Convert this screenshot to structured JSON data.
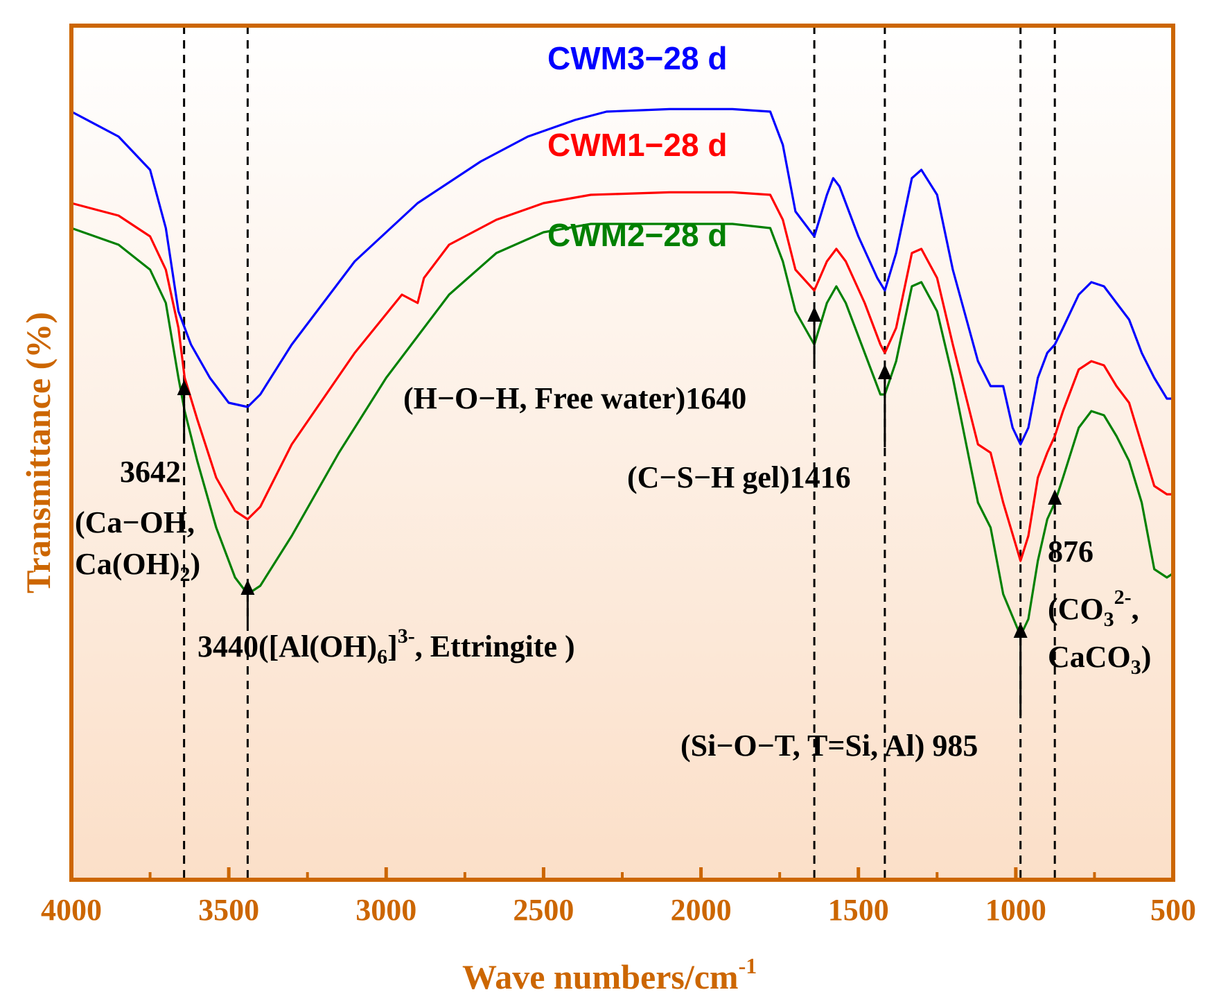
{
  "chart_data": {
    "type": "line",
    "xlabel": "Wave numbers/cm",
    "xlabel_superscript": "-1",
    "ylabel": "Transmittance (%)",
    "xlim": [
      4000,
      500
    ],
    "ylim": [
      0,
      100
    ],
    "x_ticks": [
      4000,
      3500,
      3000,
      2500,
      2000,
      1500,
      1000,
      500
    ],
    "grid": false,
    "axis_color": "#CC6600",
    "series": [
      {
        "name": "CWM3−28 d",
        "color": "#0000FF",
        "points": [
          [
            4000,
            92
          ],
          [
            3850,
            89
          ],
          [
            3750,
            85
          ],
          [
            3700,
            78
          ],
          [
            3660,
            68
          ],
          [
            3620,
            64
          ],
          [
            3560,
            60
          ],
          [
            3500,
            57
          ],
          [
            3440,
            56.5
          ],
          [
            3400,
            58
          ],
          [
            3300,
            64
          ],
          [
            3100,
            74
          ],
          [
            2900,
            81
          ],
          [
            2700,
            86
          ],
          [
            2550,
            89
          ],
          [
            2400,
            91
          ],
          [
            2300,
            92
          ],
          [
            2100,
            92.3
          ],
          [
            1900,
            92.3
          ],
          [
            1780,
            92
          ],
          [
            1740,
            88
          ],
          [
            1700,
            80
          ],
          [
            1640,
            77
          ],
          [
            1600,
            82
          ],
          [
            1580,
            84
          ],
          [
            1560,
            83
          ],
          [
            1500,
            77
          ],
          [
            1440,
            72
          ],
          [
            1416,
            70.5
          ],
          [
            1380,
            75
          ],
          [
            1330,
            84
          ],
          [
            1300,
            85
          ],
          [
            1250,
            82
          ],
          [
            1200,
            73
          ],
          [
            1120,
            62
          ],
          [
            1080,
            59
          ],
          [
            1040,
            59
          ],
          [
            1010,
            54
          ],
          [
            985,
            52
          ],
          [
            960,
            54
          ],
          [
            930,
            60
          ],
          [
            900,
            63
          ],
          [
            876,
            64
          ],
          [
            850,
            66
          ],
          [
            800,
            70
          ],
          [
            760,
            71.5
          ],
          [
            720,
            71
          ],
          [
            680,
            69
          ],
          [
            640,
            67
          ],
          [
            600,
            63
          ],
          [
            560,
            60
          ],
          [
            520,
            57.5
          ],
          [
            500,
            57.5
          ]
        ]
      },
      {
        "name": "CWM1−28 d",
        "color": "#FF0000",
        "points": [
          [
            4000,
            81
          ],
          [
            3850,
            79.5
          ],
          [
            3750,
            77
          ],
          [
            3700,
            73
          ],
          [
            3660,
            66
          ],
          [
            3640,
            60
          ],
          [
            3600,
            55
          ],
          [
            3540,
            48
          ],
          [
            3480,
            44
          ],
          [
            3440,
            43
          ],
          [
            3400,
            44.5
          ],
          [
            3300,
            52
          ],
          [
            3100,
            63
          ],
          [
            2950,
            70
          ],
          [
            2900,
            69
          ],
          [
            2880,
            72
          ],
          [
            2800,
            76
          ],
          [
            2650,
            79
          ],
          [
            2500,
            81
          ],
          [
            2350,
            82
          ],
          [
            2100,
            82.3
          ],
          [
            1900,
            82.3
          ],
          [
            1780,
            82
          ],
          [
            1740,
            79
          ],
          [
            1700,
            73
          ],
          [
            1640,
            70.5
          ],
          [
            1600,
            74
          ],
          [
            1570,
            75.5
          ],
          [
            1540,
            74
          ],
          [
            1480,
            69
          ],
          [
            1430,
            64
          ],
          [
            1416,
            63
          ],
          [
            1380,
            66
          ],
          [
            1330,
            75
          ],
          [
            1300,
            75.5
          ],
          [
            1250,
            72
          ],
          [
            1200,
            64
          ],
          [
            1120,
            52
          ],
          [
            1080,
            51
          ],
          [
            1040,
            45
          ],
          [
            985,
            38
          ],
          [
            960,
            41
          ],
          [
            930,
            48
          ],
          [
            900,
            51
          ],
          [
            876,
            53
          ],
          [
            850,
            56
          ],
          [
            800,
            61
          ],
          [
            760,
            62
          ],
          [
            720,
            61.5
          ],
          [
            680,
            59
          ],
          [
            640,
            57
          ],
          [
            600,
            52
          ],
          [
            560,
            47
          ],
          [
            520,
            46
          ],
          [
            500,
            46
          ]
        ]
      },
      {
        "name": "CWM2−28 d",
        "color": "#008000",
        "points": [
          [
            4000,
            78
          ],
          [
            3850,
            76
          ],
          [
            3750,
            73
          ],
          [
            3700,
            69
          ],
          [
            3660,
            60
          ],
          [
            3640,
            56
          ],
          [
            3600,
            50
          ],
          [
            3540,
            42
          ],
          [
            3480,
            36
          ],
          [
            3440,
            34
          ],
          [
            3400,
            35
          ],
          [
            3300,
            41
          ],
          [
            3150,
            51
          ],
          [
            3000,
            60
          ],
          [
            2900,
            65
          ],
          [
            2800,
            70
          ],
          [
            2650,
            75
          ],
          [
            2500,
            77.5
          ],
          [
            2350,
            78.5
          ],
          [
            2100,
            78.5
          ],
          [
            1900,
            78.5
          ],
          [
            1780,
            78
          ],
          [
            1740,
            74
          ],
          [
            1700,
            68
          ],
          [
            1640,
            64
          ],
          [
            1600,
            69
          ],
          [
            1570,
            71
          ],
          [
            1540,
            69
          ],
          [
            1480,
            63
          ],
          [
            1430,
            58
          ],
          [
            1416,
            58
          ],
          [
            1380,
            62
          ],
          [
            1330,
            71
          ],
          [
            1300,
            71.5
          ],
          [
            1250,
            68
          ],
          [
            1200,
            60
          ],
          [
            1120,
            45
          ],
          [
            1080,
            42
          ],
          [
            1040,
            34
          ],
          [
            985,
            29
          ],
          [
            960,
            31
          ],
          [
            930,
            38
          ],
          [
            900,
            43
          ],
          [
            876,
            45
          ],
          [
            850,
            48
          ],
          [
            800,
            54
          ],
          [
            760,
            56
          ],
          [
            720,
            55.5
          ],
          [
            680,
            53
          ],
          [
            640,
            50
          ],
          [
            600,
            45
          ],
          [
            560,
            37
          ],
          [
            520,
            36
          ],
          [
            500,
            36.5
          ]
        ]
      }
    ],
    "marker_lines": [
      3642,
      3440,
      1640,
      1416,
      985,
      876
    ],
    "annotations": [
      {
        "wavenumber": 3642,
        "lines": [
          "3642",
          "(Ca−OH,",
          "Ca(OH)"
        ],
        "sub": "2",
        "close": ")"
      },
      {
        "wavenumber": 3440,
        "text_before": "3440([Al(OH)",
        "sub": "6",
        "mid": "]",
        "sup": "3-",
        "text_after": ", Ettringite )"
      },
      {
        "wavenumber": 1640,
        "text": "(H−O−H, Free water)1640"
      },
      {
        "wavenumber": 1416,
        "text": "(C−S−H gel)1416"
      },
      {
        "wavenumber": 985,
        "text": "(Si−O−T, T=Si, Al) 985"
      },
      {
        "wavenumber": 876,
        "label": "876",
        "l2a": "(CO",
        "l2sub": "3",
        "l2sup": "2-",
        "l2end": ",",
        "l3a": "CaCO",
        "l3sub": "3",
        "l3end": ")"
      }
    ]
  }
}
